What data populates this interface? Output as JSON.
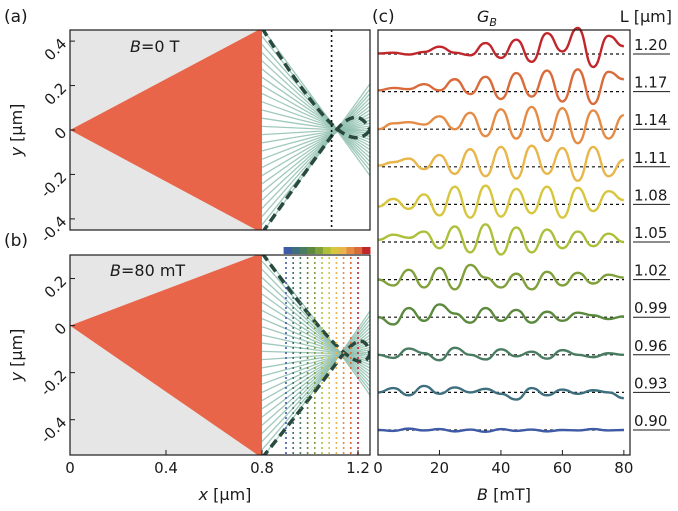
{
  "figure": {
    "panels": [
      {
        "id": "a",
        "label": "(a)",
        "annotation_prefix": "B",
        "annotation_suffix": "=0 T"
      },
      {
        "id": "b",
        "label": "(b)",
        "annotation_prefix": "B",
        "annotation_suffix": "=80 mT"
      },
      {
        "id": "c",
        "label": "(c)",
        "annotation_main": "G",
        "annotation_sub": "B",
        "annotation_right": "L [μm]"
      }
    ],
    "colors": {
      "lens_fill": "#e8654a",
      "background_region": "#e6e6e6",
      "rays": "#8fbfb0",
      "caustic": "#2b4a3f",
      "guides": "#111111",
      "spectrum": [
        "#3f5aa6",
        "#3e6f7f",
        "#4a7c62",
        "#5b8a3e",
        "#7fa03a",
        "#aebf3a",
        "#d7c63e",
        "#e8b64a",
        "#e58b44",
        "#d96a3a",
        "#c0262a"
      ]
    }
  },
  "chart_data": [
    {
      "panel": "a",
      "type": "line",
      "xlabel_var": "x",
      "xlabel_unit": " [μm]",
      "ylabel_var": "y",
      "ylabel_unit": " [μm]",
      "xlim": [
        0,
        1.25
      ],
      "ylim": [
        -0.45,
        0.45
      ],
      "yticks": [
        "0.4",
        "0.2",
        "0",
        "-0.2",
        "-0.4"
      ],
      "ytick_values": [
        0.4,
        0.2,
        0,
        -0.2,
        -0.4
      ],
      "lens_edge_x": 0.8,
      "lens_half_height": 0.46,
      "focus_marker_x": 1.09
    },
    {
      "panel": "b",
      "type": "line",
      "xlabel_var": "x",
      "xlabel_unit": " [μm]",
      "ylabel_var": "y",
      "ylabel_unit": " [μm]",
      "xlim": [
        0,
        1.25
      ],
      "ylim": [
        -0.55,
        0.3
      ],
      "xticks": [
        "0",
        "0.4",
        "0.8",
        "1.2"
      ],
      "xtick_values": [
        0,
        0.4,
        0.8,
        1.2
      ],
      "yticks": [
        "0.2",
        "0",
        "-0.2",
        "-0.4"
      ],
      "ytick_values": [
        0.2,
        0,
        -0.2,
        -0.4
      ],
      "lens_edge_x": 0.8,
      "marker_x": [
        0.9,
        0.93,
        0.96,
        0.99,
        1.02,
        1.05,
        1.08,
        1.11,
        1.14,
        1.17,
        1.2
      ]
    },
    {
      "panel": "c",
      "type": "line",
      "xlabel_var": "B",
      "xlabel_unit": " [mT]",
      "xlim": [
        0,
        82
      ],
      "xticks": [
        "0",
        "20",
        "40",
        "60",
        "80"
      ],
      "xtick_values": [
        0,
        20,
        40,
        60,
        80
      ],
      "series": [
        {
          "name": "1.20",
          "amp": 1.0,
          "y": [
            0.02,
            0.05,
            -0.02,
            0.08,
            0.28,
            0.05,
            -0.05,
            0.42,
            -0.15,
            0.55,
            -0.3,
            0.8,
            0.1,
            1.0,
            -0.5,
            0.7,
            0.3
          ]
        },
        {
          "name": "1.17",
          "amp": 0.95,
          "y": [
            0.05,
            0.15,
            0.1,
            0.3,
            0.05,
            0.5,
            -0.1,
            0.6,
            -0.3,
            0.75,
            -0.2,
            0.85,
            -0.4,
            0.9,
            -0.5,
            0.8,
            0.5
          ]
        },
        {
          "name": "1.14",
          "amp": 0.9,
          "y": [
            0.0,
            0.25,
            0.3,
            0.2,
            0.55,
            0.0,
            0.7,
            -0.3,
            0.85,
            -0.4,
            0.95,
            -0.5,
            0.9,
            -0.6,
            0.8,
            -0.4,
            0.6
          ]
        },
        {
          "name": "1.11",
          "amp": 0.9,
          "y": [
            0.05,
            0.2,
            0.35,
            -0.1,
            0.5,
            -0.3,
            0.75,
            -0.4,
            0.85,
            -0.5,
            0.9,
            -0.3,
            0.8,
            -0.6,
            0.85,
            -0.4,
            0.3
          ]
        },
        {
          "name": "1.08",
          "amp": 0.85,
          "y": [
            -0.1,
            0.25,
            -0.2,
            0.45,
            -0.5,
            0.8,
            -0.6,
            0.85,
            -0.55,
            0.7,
            -0.4,
            0.8,
            -0.6,
            0.75,
            -0.3,
            0.6,
            0.2
          ]
        },
        {
          "name": "1.05",
          "amp": 0.8,
          "y": [
            0.1,
            0.35,
            0.2,
            0.5,
            -0.3,
            0.75,
            -0.5,
            0.85,
            -0.6,
            0.7,
            -0.5,
            0.6,
            -0.3,
            0.5,
            -0.2,
            0.4,
            0.0
          ]
        },
        {
          "name": "1.02",
          "amp": 0.75,
          "y": [
            0.0,
            -0.3,
            0.5,
            -0.4,
            0.6,
            -0.5,
            0.75,
            0.1,
            -0.4,
            0.3,
            -0.5,
            0.4,
            -0.3,
            0.35,
            -0.2,
            0.25,
            0.1
          ]
        },
        {
          "name": "0.99",
          "amp": 0.7,
          "y": [
            0.0,
            -0.4,
            0.5,
            -0.2,
            0.7,
            0.2,
            -0.3,
            0.5,
            -0.2,
            0.4,
            -0.3,
            0.3,
            -0.2,
            0.25,
            0.1,
            -0.1,
            0.05
          ]
        },
        {
          "name": "0.96",
          "amp": 0.6,
          "y": [
            0.0,
            -0.2,
            0.4,
            0.1,
            -0.35,
            0.45,
            0.0,
            -0.3,
            0.35,
            -0.1,
            0.2,
            -0.25,
            0.3,
            0.0,
            -0.15,
            0.1,
            0.0
          ]
        },
        {
          "name": "0.93",
          "amp": 0.55,
          "y": [
            0.0,
            0.3,
            -0.2,
            0.45,
            -0.1,
            0.35,
            0.0,
            0.25,
            -0.1,
            -0.5,
            0.3,
            -0.2,
            0.2,
            -0.1,
            0.15,
            0.0,
            -0.4
          ]
        },
        {
          "name": "0.90",
          "amp": 0.35,
          "y": [
            0.0,
            -0.1,
            0.15,
            -0.05,
            0.1,
            -0.15,
            0.05,
            -0.2,
            0.1,
            -0.1,
            0.05,
            -0.15,
            0.0,
            -0.05,
            0.1,
            -0.05,
            0.0
          ]
        }
      ]
    }
  ]
}
